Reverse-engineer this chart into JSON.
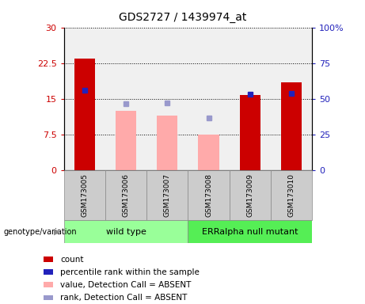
{
  "title": "GDS2727 / 1439974_at",
  "samples": [
    "GSM173005",
    "GSM173006",
    "GSM173007",
    "GSM173008",
    "GSM173009",
    "GSM173010"
  ],
  "red_bars": [
    23.5,
    0,
    0,
    0,
    15.8,
    18.5
  ],
  "pink_bars": [
    0,
    12.5,
    11.5,
    7.5,
    0,
    0
  ],
  "blue_squares_left_val": [
    16.8,
    0,
    0,
    0,
    15.9,
    16.2
  ],
  "lavender_squares_pct": [
    0,
    46.5,
    47.0,
    36.5,
    0,
    0
  ],
  "detection_call_absent": [
    false,
    true,
    true,
    true,
    false,
    false
  ],
  "wild_type_label": "wild type",
  "mutant_label": "ERRalpha null mutant",
  "ylim_left": [
    0,
    30
  ],
  "ylim_right": [
    0,
    100
  ],
  "yticks_left": [
    0,
    7.5,
    15,
    22.5,
    30
  ],
  "yticks_right": [
    0,
    25,
    50,
    75,
    100
  ],
  "ytick_labels_left": [
    "0",
    "7.5",
    "15",
    "22.5",
    "30"
  ],
  "ytick_labels_right": [
    "0",
    "25",
    "50",
    "75",
    "100%"
  ],
  "red_color": "#cc0000",
  "pink_color": "#ffaaaa",
  "blue_color": "#2222bb",
  "lavender_color": "#9999cc",
  "wild_type_bg": "#99ff99",
  "mutant_bg": "#55ee55",
  "sample_bg": "#cccccc",
  "plot_bg": "#f0f0f0",
  "bar_width": 0.5,
  "legend_items": [
    {
      "color": "#cc0000",
      "label": "count"
    },
    {
      "color": "#2222bb",
      "label": "percentile rank within the sample"
    },
    {
      "color": "#ffaaaa",
      "label": "value, Detection Call = ABSENT"
    },
    {
      "color": "#9999cc",
      "label": "rank, Detection Call = ABSENT"
    }
  ]
}
